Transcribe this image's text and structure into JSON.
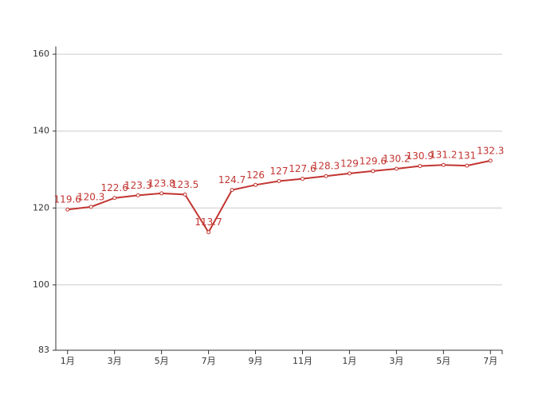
{
  "chart_data": {
    "type": "line",
    "categories": [
      "1月",
      null,
      "3月",
      null,
      "5月",
      null,
      "7月",
      null,
      "9月",
      null,
      "11月",
      null,
      "1月",
      null,
      "3月",
      null,
      "5月",
      null,
      "7月"
    ],
    "values": [
      119.6,
      120.3,
      122.6,
      123.3,
      123.8,
      123.5,
      113.7,
      124.7,
      126,
      127,
      127.6,
      128.3,
      129,
      129.6,
      130.2,
      130.9,
      131.2,
      131,
      132.3
    ],
    "color": "#c23531",
    "ylim": [
      83,
      162
    ],
    "yticks": [
      83,
      100,
      120,
      140,
      160
    ],
    "grid": true,
    "data_labels": true
  }
}
